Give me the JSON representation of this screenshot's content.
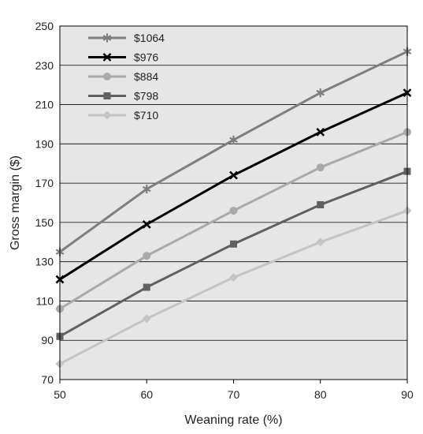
{
  "chart_data": {
    "type": "line",
    "xlabel": "Weaning rate (%)",
    "ylabel": "Gross margin ($)",
    "x": [
      50,
      60,
      70,
      80,
      90
    ],
    "xlim": [
      50,
      90
    ],
    "ylim": [
      70,
      250
    ],
    "xticks": [
      50,
      60,
      70,
      80,
      90
    ],
    "yticks": [
      70,
      90,
      110,
      130,
      150,
      170,
      190,
      210,
      230,
      250
    ],
    "grid": "horizontal",
    "legend_position": "top-left",
    "background_color": "#e6e6e6",
    "series": [
      {
        "name": "$1064",
        "values": [
          135,
          167,
          192,
          216,
          237
        ],
        "color": "#7f7f7f",
        "marker": "star"
      },
      {
        "name": "$976",
        "values": [
          121,
          149,
          174,
          196,
          216
        ],
        "color": "#000000",
        "marker": "x"
      },
      {
        "name": "$884",
        "values": [
          106,
          133,
          156,
          178,
          196
        ],
        "color": "#a9a9a9",
        "marker": "circle"
      },
      {
        "name": "$798",
        "values": [
          92,
          117,
          139,
          159,
          176
        ],
        "color": "#606060",
        "marker": "square"
      },
      {
        "name": "$710",
        "values": [
          78,
          101,
          122,
          140,
          156
        ],
        "color": "#c4c4c4",
        "marker": "diamond"
      }
    ]
  }
}
